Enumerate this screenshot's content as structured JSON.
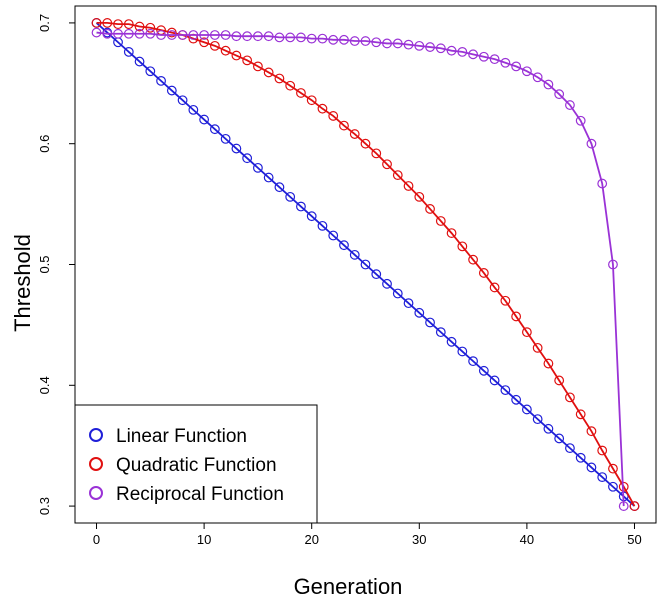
{
  "chart_data": {
    "type": "line",
    "xlabel": "Generation",
    "ylabel": "Threshold",
    "xlim": [
      -2,
      52
    ],
    "ylim": [
      0.286,
      0.714
    ],
    "xticks": [
      0,
      10,
      20,
      30,
      40,
      50
    ],
    "yticks": [
      0.3,
      0.4,
      0.5,
      0.6,
      0.7
    ],
    "xtick_labels": [
      "0",
      "10",
      "20",
      "30",
      "40",
      "50"
    ],
    "ytick_labels": [
      "0.3",
      "0.4",
      "0.5",
      "0.6",
      "0.7"
    ],
    "legend_position": "bottom-left",
    "grid": false,
    "x": [
      0,
      1,
      2,
      3,
      4,
      5,
      6,
      7,
      8,
      9,
      10,
      11,
      12,
      13,
      14,
      15,
      16,
      17,
      18,
      19,
      20,
      21,
      22,
      23,
      24,
      25,
      26,
      27,
      28,
      29,
      30,
      31,
      32,
      33,
      34,
      35,
      36,
      37,
      38,
      39,
      40,
      41,
      42,
      43,
      44,
      45,
      46,
      47,
      48,
      49,
      50
    ],
    "series": [
      {
        "name": "Linear Function",
        "color": "#1f1fd8",
        "values": [
          0.7,
          0.692,
          0.684,
          0.676,
          0.668,
          0.66,
          0.652,
          0.644,
          0.636,
          0.628,
          0.62,
          0.612,
          0.604,
          0.596,
          0.588,
          0.58,
          0.572,
          0.564,
          0.556,
          0.548,
          0.54,
          0.532,
          0.524,
          0.516,
          0.508,
          0.5,
          0.492,
          0.484,
          0.476,
          0.468,
          0.46,
          0.452,
          0.444,
          0.436,
          0.428,
          0.42,
          0.412,
          0.404,
          0.396,
          0.388,
          0.38,
          0.372,
          0.364,
          0.356,
          0.348,
          0.34,
          0.332,
          0.324,
          0.316,
          0.308,
          0.3
        ]
      },
      {
        "name": "Quadratic Function",
        "color": "#e01010",
        "values": [
          0.7,
          0.7,
          0.699,
          0.699,
          0.697,
          0.696,
          0.694,
          0.692,
          0.69,
          0.687,
          0.684,
          0.681,
          0.677,
          0.673,
          0.669,
          0.664,
          0.659,
          0.654,
          0.648,
          0.642,
          0.636,
          0.629,
          0.623,
          0.615,
          0.608,
          0.6,
          0.592,
          0.583,
          0.574,
          0.565,
          0.556,
          0.546,
          0.536,
          0.526,
          0.515,
          0.504,
          0.493,
          0.481,
          0.47,
          0.457,
          0.444,
          0.431,
          0.418,
          0.404,
          0.39,
          0.376,
          0.362,
          0.346,
          0.331,
          0.316,
          0.3
        ]
      },
      {
        "name": "Reciprocal Function",
        "color": "#9a32d6",
        "values": [
          0.692,
          0.691,
          0.691,
          0.691,
          0.691,
          0.691,
          0.69,
          0.69,
          0.69,
          0.69,
          0.69,
          0.69,
          0.69,
          0.689,
          0.689,
          0.689,
          0.689,
          0.688,
          0.688,
          0.688,
          0.687,
          0.687,
          0.686,
          0.686,
          0.685,
          0.685,
          0.684,
          0.683,
          0.683,
          0.682,
          0.681,
          0.68,
          0.679,
          0.677,
          0.676,
          0.674,
          0.672,
          0.67,
          0.667,
          0.664,
          0.66,
          0.655,
          0.649,
          0.641,
          0.632,
          0.619,
          0.6,
          0.567,
          0.5,
          0.3,
          null
        ]
      }
    ]
  }
}
